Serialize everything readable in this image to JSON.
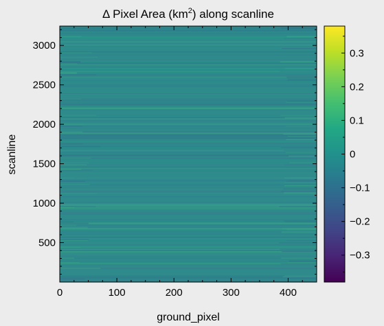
{
  "chart_data": {
    "type": "heatmap",
    "title_prefix": "Δ Pixel Area (km",
    "title_sup": "2",
    "title_suffix": ") along scanline",
    "xlabel": "ground_pixel",
    "ylabel": "scanline",
    "xlim": [
      0,
      450
    ],
    "ylim": [
      0,
      3245
    ],
    "xticks": [
      0,
      100,
      200,
      300,
      400
    ],
    "xtick_labels": [
      "0",
      "100",
      "200",
      "300",
      "400"
    ],
    "yticks": [
      500,
      1000,
      1500,
      2000,
      2500,
      3000
    ],
    "ytick_labels": [
      "500",
      "1000",
      "1500",
      "2000",
      "2500",
      "3000"
    ],
    "colorbar": {
      "colormap": "viridis",
      "vmin": -0.38,
      "vmax": 0.38,
      "ticks": [
        0.3,
        0.2,
        0.1,
        0,
        -0.1,
        -0.2,
        -0.3
      ],
      "tick_labels": [
        "0.3",
        "0.2",
        "0.1",
        "0",
        "−0.1",
        "−0.2",
        "−0.3"
      ]
    },
    "description_of_values": "values mostly near 0 with thin horizontal streaks of ±0.05–0.15 varying by scanline",
    "base_color": "#2e8a8b"
  }
}
